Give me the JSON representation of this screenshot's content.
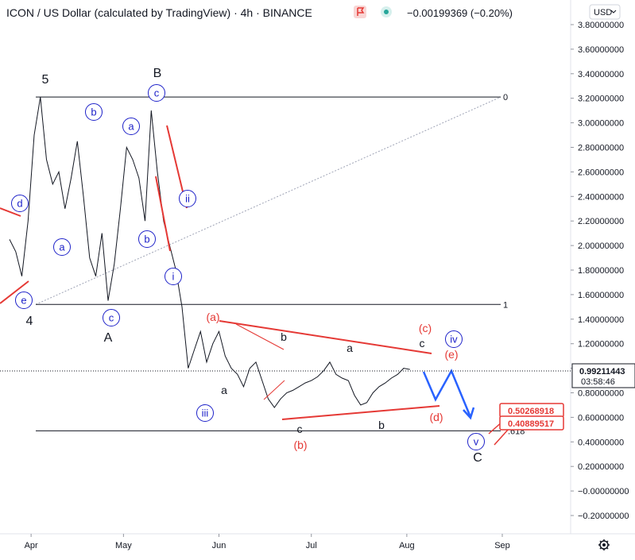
{
  "header": {
    "symbol_title": "ICON / US Dollar (calculated by TradingView) · 4h · BINANCE",
    "change": "−0.00199369 (−0.20%)",
    "currency": "USD",
    "accent_red": "#e53935",
    "accent_green": "#26a69a",
    "icons": [
      "flag-icon",
      "market-status-icon",
      "dropdown-icon",
      "settings-gear-icon"
    ]
  },
  "price_badge": {
    "price": "0.99211443",
    "countdown": "03:58:46"
  },
  "fib_boxes": [
    "0.50268918",
    "0.40889517"
  ],
  "fib_levels": [
    {
      "label": "0",
      "price": 3.21
    },
    {
      "label": "1",
      "price": 1.52
    },
    {
      "label": ".618",
      "price": 0.49
    }
  ],
  "chart_data": {
    "type": "line",
    "title": "ICON / US Dollar (calculated by TradingView) · 4h · BINANCE",
    "xlabel": "",
    "ylabel": "",
    "ylim": [
      -0.3,
      3.97
    ],
    "grid": false,
    "x_ticks": [
      "Apr",
      "May",
      "Jun",
      "Jul",
      "Aug",
      "Sep"
    ],
    "y_ticks": [
      "3.80000000",
      "3.60000000",
      "3.40000000",
      "3.20000000",
      "3.00000000",
      "2.80000000",
      "2.60000000",
      "2.40000000",
      "2.20000000",
      "2.00000000",
      "1.80000000",
      "1.60000000",
      "1.40000000",
      "1.20000000",
      "1.00000000",
      "0.80000000",
      "0.60000000",
      "0.40000000",
      "0.20000000",
      "−0.00000000",
      "−0.20000000"
    ],
    "y_tick_values": [
      3.8,
      3.6,
      3.4,
      3.2,
      3.0,
      2.8,
      2.6,
      2.4,
      2.2,
      2.0,
      1.8,
      1.6,
      1.4,
      1.2,
      1.0,
      0.8,
      0.6,
      0.4,
      0.2,
      0.0,
      -0.2
    ],
    "series": [
      {
        "x": [
          "Mar 25",
          "Mar 27",
          "Mar 29",
          "Mar 31",
          "Apr 2",
          "Apr 4",
          "Apr 6",
          "Apr 8",
          "Apr 10",
          "Apr 12",
          "Apr 14",
          "Apr 16",
          "Apr 18",
          "Apr 20",
          "Apr 22",
          "Apr 24",
          "Apr 26",
          "Apr 28",
          "Apr 30",
          "May 2",
          "May 4",
          "May 6",
          "May 8",
          "May 10",
          "May 12",
          "May 14",
          "May 16",
          "May 18",
          "May 20",
          "May 22",
          "May 24",
          "May 26",
          "May 28",
          "May 30",
          "Jun 1",
          "Jun 3",
          "Jun 5",
          "Jun 7",
          "Jun 9",
          "Jun 11",
          "Jun 13",
          "Jun 15",
          "Jun 17",
          "Jun 19",
          "Jun 21",
          "Jun 23",
          "Jun 25",
          "Jun 27",
          "Jun 29",
          "Jul 1",
          "Jul 3",
          "Jul 5",
          "Jul 7",
          "Jul 9",
          "Jul 11",
          "Jul 13",
          "Jul 15",
          "Jul 17",
          "Jul 19",
          "Jul 21",
          "Jul 23",
          "Jul 25",
          "Jul 27",
          "Jul 29",
          "Jul 31",
          "Aug 2"
        ],
        "values": [
          2.05,
          1.95,
          1.75,
          2.2,
          2.9,
          3.21,
          2.7,
          2.5,
          2.6,
          2.3,
          2.55,
          2.85,
          2.4,
          1.9,
          1.75,
          2.1,
          1.55,
          1.85,
          2.3,
          2.8,
          2.7,
          2.55,
          2.2,
          3.1,
          2.6,
          2.2,
          2.0,
          1.8,
          1.5,
          1.0,
          1.15,
          1.3,
          1.05,
          1.2,
          1.3,
          1.1,
          1.0,
          0.95,
          0.85,
          1.0,
          1.05,
          0.9,
          0.75,
          0.68,
          0.75,
          0.8,
          0.82,
          0.85,
          0.88,
          0.9,
          0.93,
          0.98,
          1.05,
          0.95,
          0.92,
          0.9,
          0.78,
          0.7,
          0.72,
          0.8,
          0.85,
          0.88,
          0.92,
          0.95,
          1.0,
          0.99
        ]
      }
    ],
    "annotations": {
      "black": [
        "5",
        "B",
        "4",
        "A",
        "C",
        "a",
        "b",
        "c",
        "a",
        "b",
        "c"
      ],
      "red": [
        "(a)",
        "(b)",
        "(c)",
        "(d)",
        "(e)"
      ],
      "blue_circled": [
        "d",
        "e",
        "b",
        "a",
        "c",
        "a",
        "c",
        "b",
        "ii",
        "i",
        "iii",
        "iv",
        "v"
      ]
    }
  }
}
